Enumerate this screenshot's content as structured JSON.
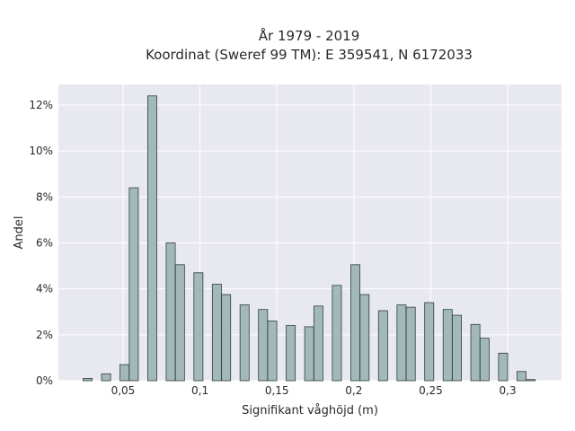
{
  "chart_data": {
    "type": "bar",
    "title_lines": [
      "År 1979 - 2019",
      "Koordinat (Sweref 99 TM): E 359541, N 6172033"
    ],
    "xlabel": "Signifikant våghöjd (m)",
    "ylabel": "Andel",
    "xlim": [
      0.008,
      0.335
    ],
    "ylim": [
      0,
      12.9
    ],
    "x_ticks": [
      {
        "value": 0.05,
        "label": "0,05"
      },
      {
        "value": 0.1,
        "label": "0,1"
      },
      {
        "value": 0.15,
        "label": "0,15"
      },
      {
        "value": 0.2,
        "label": "0,2"
      },
      {
        "value": 0.25,
        "label": "0,25"
      },
      {
        "value": 0.3,
        "label": "0,3"
      }
    ],
    "y_ticks": [
      {
        "value": 0,
        "label": "0%"
      },
      {
        "value": 2,
        "label": "2%"
      },
      {
        "value": 4,
        "label": "4%"
      },
      {
        "value": 6,
        "label": "6%"
      },
      {
        "value": 8,
        "label": "8%"
      },
      {
        "value": 10,
        "label": "10%"
      },
      {
        "value": 12,
        "label": "12%"
      }
    ],
    "bar_width": 0.0059,
    "x": [
      0.027,
      0.039,
      0.051,
      0.057,
      0.069,
      0.081,
      0.087,
      0.099,
      0.111,
      0.117,
      0.129,
      0.141,
      0.147,
      0.159,
      0.171,
      0.177,
      0.189,
      0.201,
      0.207,
      0.219,
      0.231,
      0.237,
      0.249,
      0.261,
      0.267,
      0.279,
      0.285,
      0.297,
      0.309,
      0.315
    ],
    "values": [
      0.1,
      0.3,
      0.7,
      8.4,
      12.4,
      6.0,
      5.05,
      4.7,
      4.2,
      3.75,
      3.3,
      3.1,
      2.6,
      2.4,
      2.35,
      3.25,
      4.15,
      5.05,
      3.75,
      3.05,
      3.3,
      3.2,
      3.4,
      3.1,
      2.85,
      2.45,
      1.85,
      1.2,
      0.4,
      0.05
    ],
    "colors": {
      "bar_fill": "#a3b8b9",
      "bar_edge": "#2f3f3f",
      "plot_bg": "#e8e8f0",
      "grid": "#ffffff"
    },
    "grid": true
  }
}
